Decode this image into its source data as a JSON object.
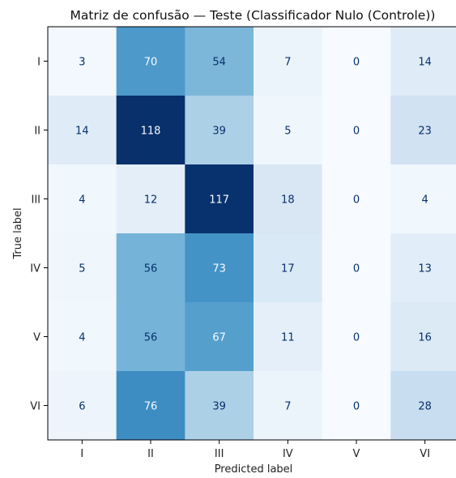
{
  "chart_data": {
    "type": "heatmap",
    "title": "Matriz de confusão — Teste (Classificador Nulo (Controle))",
    "xlabel": "Predicted label",
    "ylabel": "True label",
    "x_categories": [
      "I",
      "II",
      "III",
      "IV",
      "V",
      "VI"
    ],
    "y_categories": [
      "I",
      "II",
      "III",
      "IV",
      "V",
      "VI"
    ],
    "values": [
      [
        3,
        70,
        54,
        7,
        0,
        14
      ],
      [
        14,
        118,
        39,
        5,
        0,
        23
      ],
      [
        4,
        12,
        117,
        18,
        0,
        4
      ],
      [
        5,
        56,
        73,
        17,
        0,
        13
      ],
      [
        4,
        56,
        67,
        11,
        0,
        16
      ],
      [
        6,
        76,
        39,
        7,
        0,
        28
      ]
    ],
    "colormap": "Blues",
    "value_range": [
      0,
      118
    ],
    "grid": false
  }
}
